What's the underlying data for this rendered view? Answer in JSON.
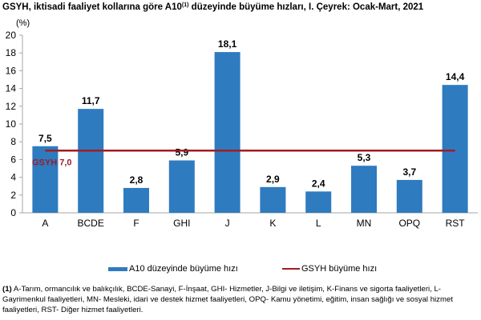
{
  "title": {
    "main": "GSYH, iktisadi faaliyet kollarına göre A10",
    "sup": "(1)",
    "rest": " düzeyinde büyüme hızları, I. Çeyrek: Ocak-Mart, 2021"
  },
  "unit": "(%)",
  "colors": {
    "bar": "#2e7bbf",
    "line": "#a11d21",
    "line_label": "#9b1c2e",
    "axis": "#a6a6a6"
  },
  "legend": {
    "bar_label": "A10 düzeyinde büyüme hızı",
    "line_label": "GSYH büyüme hızı"
  },
  "gdp_annotation": {
    "label": "GSYH",
    "value": "7,0"
  },
  "footnote": {
    "marker": "(1)",
    "text": " A-Tarım, ormancılık ve balıkçılık, BCDE-Sanayi, F-İnşaat, GHI- Hizmetler, J-Bilgi ve iletişim, K-Finans ve sigorta faaliyetleri, L-Gayrimenkul faaliyetleri, MN- Mesleki, idari ve destek hizmet faaliyetleri, OPQ- Kamu yönetimi, eğitim, insan sağlığı ve sosyal hizmet faaliyetleri, RST- Diğer hizmet faaliyetleri."
  },
  "chart_data": {
    "type": "bar",
    "title": "GSYH, iktisadi faaliyet kollarına göre A10(1) düzeyinde büyüme hızları, I. Çeyrek: Ocak-Mart, 2021",
    "xlabel": "",
    "ylabel": "(%)",
    "ylim": [
      0,
      20
    ],
    "yticks": [
      0,
      2,
      4,
      6,
      8,
      10,
      12,
      14,
      16,
      18,
      20
    ],
    "grid": false,
    "legend_position": "bottom",
    "categories": [
      "A",
      "BCDE",
      "F",
      "GHI",
      "J",
      "K",
      "L",
      "MN",
      "OPQ",
      "RST"
    ],
    "series": [
      {
        "name": "A10 düzeyinde büyüme hızı",
        "type": "bar",
        "values": [
          7.5,
          11.7,
          2.8,
          5.9,
          18.1,
          2.9,
          2.4,
          5.3,
          3.7,
          14.4
        ],
        "labels": [
          "7,5",
          "11,7",
          "2,8",
          "5,9",
          "18,1",
          "2,9",
          "2,4",
          "5,3",
          "3,7",
          "14,4"
        ]
      },
      {
        "name": "GSYH büyüme hızı",
        "type": "line",
        "values": [
          7.0,
          7.0,
          7.0,
          7.0,
          7.0,
          7.0,
          7.0,
          7.0,
          7.0,
          7.0
        ]
      }
    ],
    "annotations": [
      "GSYH 7,0"
    ]
  }
}
